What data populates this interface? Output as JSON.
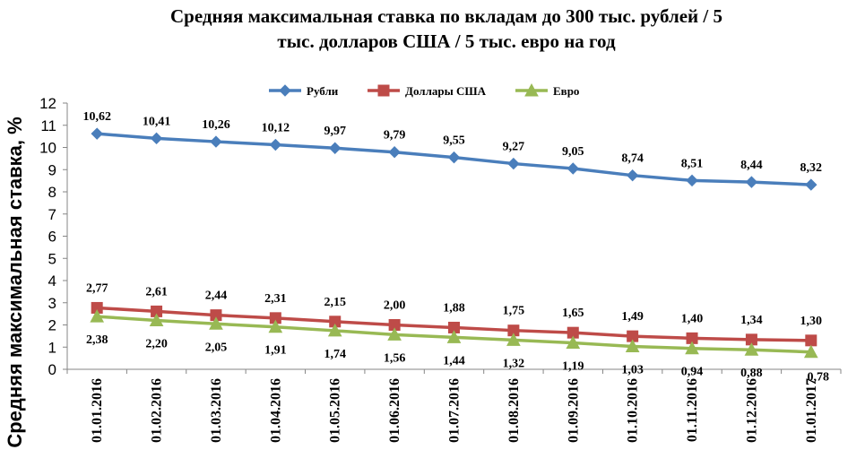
{
  "chart_data": {
    "type": "line",
    "title": "Средняя максимальная ставка по вкладам до 300 тыс. рублей / 5 тыс. долларов США  / 5 тыс. евро на год",
    "title_lines": [
      "Средняя максимальная ставка по вкладам до 300 тыс. рублей / 5",
      "тыс. долларов США  / 5 тыс. евро на год"
    ],
    "xlabel": "",
    "ylabel": "Средняя максимальная ставка, %",
    "ylim": [
      0,
      12
    ],
    "yticks": [
      "0",
      "1",
      "2",
      "3",
      "4",
      "5",
      "6",
      "7",
      "8",
      "9",
      "10",
      "11",
      "12"
    ],
    "legend_position": "top",
    "categories": [
      "01.01.2016",
      "01.02.2016",
      "01.03.2016",
      "01.04.2016",
      "01.05.2016",
      "01.06.2016",
      "01.07.2016",
      "01.08.2016",
      "01.09.2016",
      "01.10.2016",
      "01.11.2016",
      "01.12.2016",
      "01.01.2017"
    ],
    "series": [
      {
        "name": "Рубли",
        "color": "#4a7ebb",
        "marker": "diamond",
        "values": [
          10.62,
          10.41,
          10.26,
          10.12,
          9.97,
          9.79,
          9.55,
          9.27,
          9.05,
          8.74,
          8.51,
          8.44,
          8.32
        ],
        "labels": [
          "10,62",
          "10,41",
          "10,26",
          "10,12",
          "9,97",
          "9,79",
          "9,55",
          "9,27",
          "9,05",
          "8,74",
          "8,51",
          "8,44",
          "8,32"
        ]
      },
      {
        "name": "Доллары США",
        "color": "#be4b48",
        "marker": "square",
        "values": [
          2.77,
          2.61,
          2.44,
          2.31,
          2.15,
          2.0,
          1.88,
          1.75,
          1.65,
          1.49,
          1.4,
          1.34,
          1.3
        ],
        "labels": [
          "2,77",
          "2,61",
          "2,44",
          "2,31",
          "2,15",
          "2,00",
          "1,88",
          "1,75",
          "1,65",
          "1,49",
          "1,40",
          "1,34",
          "1,30"
        ]
      },
      {
        "name": "Евро",
        "color": "#98b954",
        "marker": "triangle",
        "values": [
          2.38,
          2.2,
          2.05,
          1.91,
          1.74,
          1.56,
          1.44,
          1.32,
          1.19,
          1.03,
          0.94,
          0.88,
          0.78
        ],
        "labels": [
          "2,38",
          "2,20",
          "2,05",
          "1,91",
          "1,74",
          "1,56",
          "1,44",
          "1,32",
          "1,19",
          "1,03",
          "0,94",
          "0,88",
          "0,78"
        ]
      }
    ]
  }
}
